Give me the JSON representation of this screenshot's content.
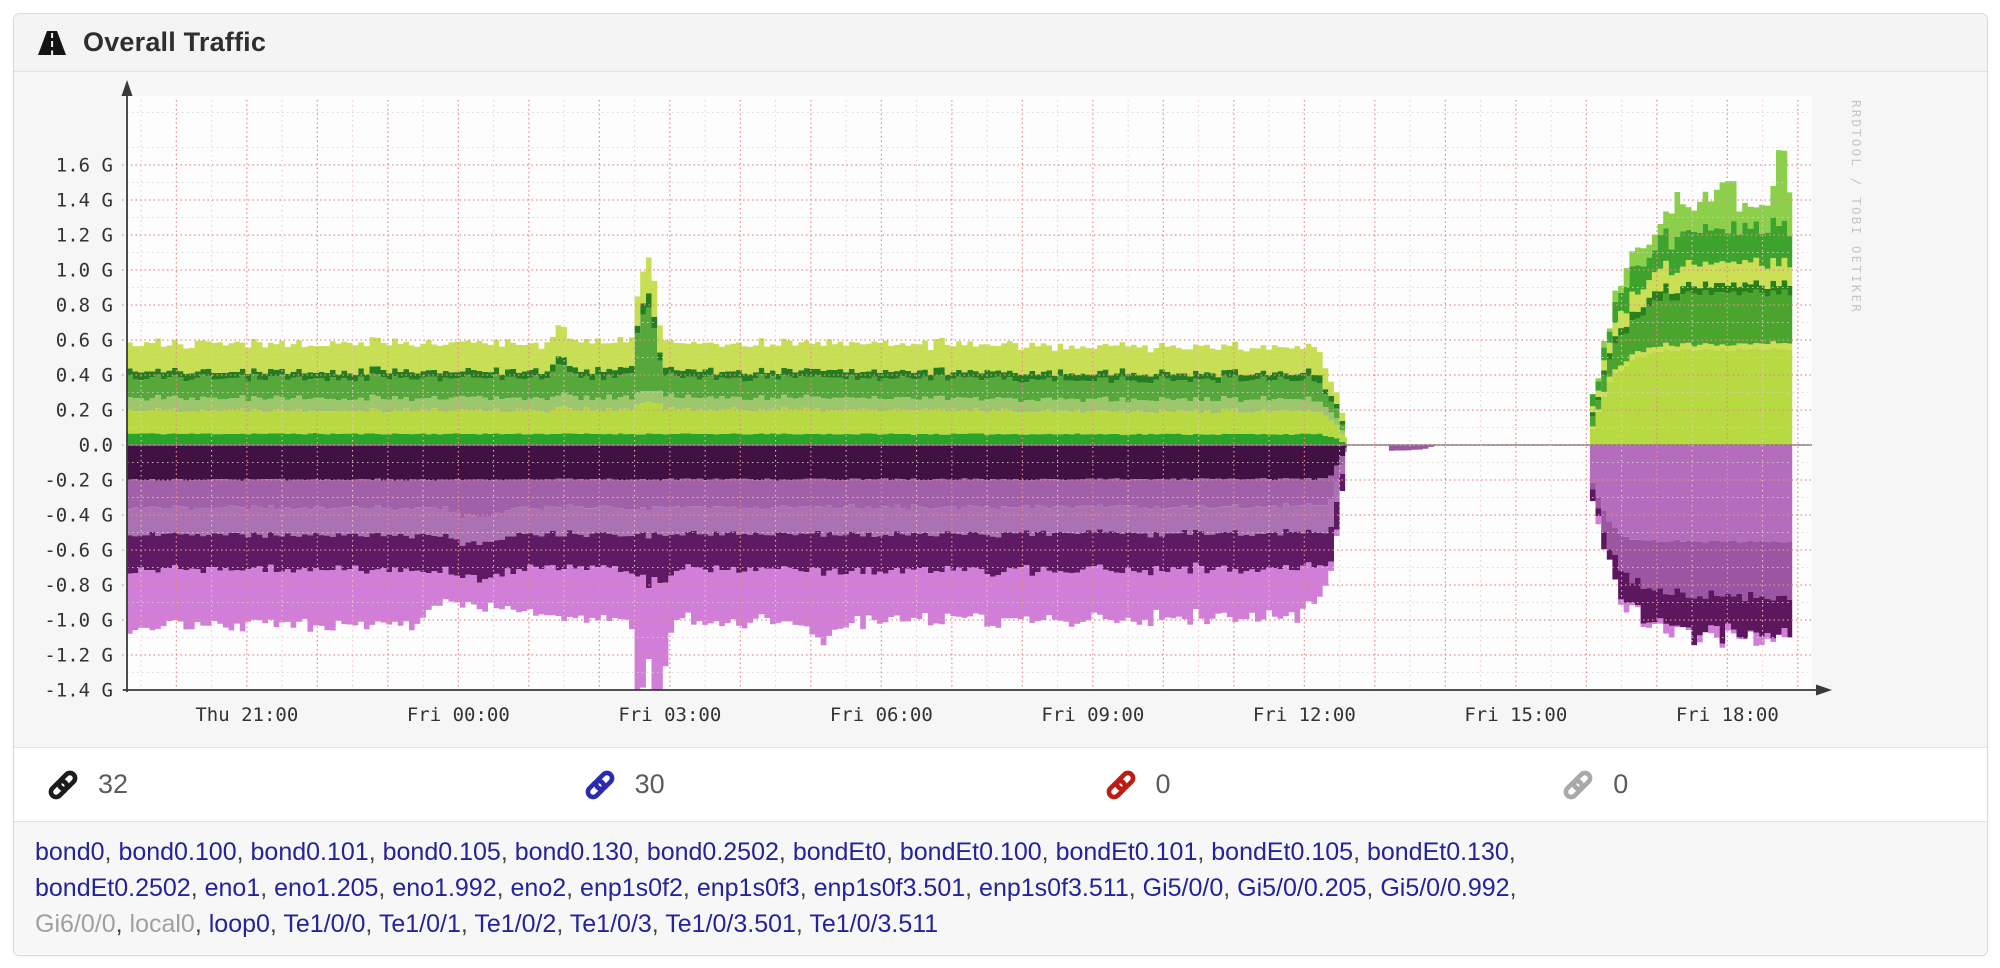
{
  "header": {
    "title": "Overall Traffic",
    "icon": "road-icon"
  },
  "chart_data": {
    "type": "area",
    "variant": "bidirectional-stacked-rrd",
    "title": "Overall Traffic",
    "watermark": "RRDTOOL / TOBI OETIKER",
    "y_unit": "G",
    "grid": true,
    "legend": null,
    "x_axis_note": "t = hours since Thu 19:18; green stack = inbound (above zero), purple stack = outbound (below zero); data gap between t=17.3 and t=20.75 with tiny purple blips",
    "x_ticks": [
      {
        "t": 1.7,
        "label": "Thu 21:00"
      },
      {
        "t": 4.7,
        "label": "Fri 00:00"
      },
      {
        "t": 7.7,
        "label": "Fri 03:00"
      },
      {
        "t": 10.7,
        "label": "Fri 06:00"
      },
      {
        "t": 13.7,
        "label": "Fri 09:00"
      },
      {
        "t": 16.7,
        "label": "Fri 12:00"
      },
      {
        "t": 19.7,
        "label": "Fri 15:00"
      },
      {
        "t": 22.7,
        "label": "Fri 18:00"
      }
    ],
    "y_ticks": [
      {
        "v": 1.6,
        "label": "1.6 G"
      },
      {
        "v": 1.4,
        "label": "1.4 G"
      },
      {
        "v": 1.2,
        "label": "1.2 G"
      },
      {
        "v": 1.0,
        "label": "1.0 G"
      },
      {
        "v": 0.8,
        "label": "0.8 G"
      },
      {
        "v": 0.6,
        "label": "0.6 G"
      },
      {
        "v": 0.4,
        "label": "0.4 G"
      },
      {
        "v": 0.2,
        "label": "0.2 G"
      },
      {
        "v": 0.0,
        "label": "0.0"
      },
      {
        "v": -0.2,
        "label": "-0.2 G"
      },
      {
        "v": -0.4,
        "label": "-0.4 G"
      },
      {
        "v": -0.6,
        "label": "-0.6 G"
      },
      {
        "v": -0.8,
        "label": "-0.8 G"
      },
      {
        "v": -1.0,
        "label": "-1.0 G"
      },
      {
        "v": -1.2,
        "label": "-1.2 G"
      },
      {
        "v": -1.4,
        "label": "-1.4 G"
      }
    ],
    "y_range": [
      -1.45,
      1.95
    ],
    "x_range": [
      0,
      23.85
    ],
    "style": {
      "plot_bg": "#fdfdfd",
      "image_bg": "#f6f6f6",
      "grid_major": "#e98a8a",
      "grid_minor_h": "#d4d4d4",
      "grid_minor_v": "#f2c8c8",
      "axis": "#3a3a3a",
      "zero_line": "#7d7d7d",
      "tick_text": "#333333",
      "watermark_color": "#c6c6c6"
    },
    "segments": [
      {
        "t0": 0,
        "t1": 17.3,
        "step": 0.08,
        "pos": [
          {
            "color": "#2aa32a",
            "noise": 0.004,
            "seed": 11,
            "keys": [
              [
                0,
                0.065
              ],
              [
                16.9,
                0.062
              ],
              [
                17.1,
                0.04
              ],
              [
                17.3,
                0
              ]
            ]
          },
          {
            "color": "#b7d941",
            "noise": 0.012,
            "seed": 22,
            "keys": [
              [
                0,
                0.135
              ],
              [
                6.0,
                0.135
              ],
              [
                6.12,
                0.16
              ],
              [
                6.3,
                0.14
              ],
              [
                7.1,
                0.135
              ],
              [
                7.25,
                0.18
              ],
              [
                7.45,
                0.18
              ],
              [
                7.6,
                0.14
              ],
              [
                16.8,
                0.13
              ],
              [
                17.1,
                0.08
              ],
              [
                17.3,
                0
              ]
            ]
          },
          {
            "color": "#9cc76c",
            "noise": 0.01,
            "seed": 33,
            "keys": [
              [
                0,
                0.07
              ],
              [
                16.8,
                0.068
              ],
              [
                17.1,
                0.04
              ],
              [
                17.3,
                0
              ]
            ]
          },
          {
            "color": "#57a83a",
            "noise": 0.013,
            "seed": 44,
            "keys": [
              [
                0,
                0.115
              ],
              [
                5.95,
                0.115
              ],
              [
                6.1,
                0.19
              ],
              [
                6.28,
                0.125
              ],
              [
                7.1,
                0.115
              ],
              [
                7.24,
                0.42
              ],
              [
                7.38,
                0.5
              ],
              [
                7.52,
                0.16
              ],
              [
                7.65,
                0.115
              ],
              [
                16.8,
                0.11
              ],
              [
                17.1,
                0.06
              ],
              [
                17.3,
                0
              ]
            ]
          },
          {
            "color": "#267d1f",
            "noise": 0.008,
            "seed": 55,
            "keys": [
              [
                0,
                0.04
              ],
              [
                7.15,
                0.04
              ],
              [
                7.35,
                0.08
              ],
              [
                7.55,
                0.04
              ],
              [
                16.9,
                0.04
              ],
              [
                17.15,
                0.02
              ],
              [
                17.3,
                0
              ]
            ]
          },
          {
            "color": "#c8de54",
            "noise": 0.016,
            "seed": 66,
            "keys": [
              [
                0,
                0.16
              ],
              [
                5.95,
                0.16
              ],
              [
                6.1,
                0.19
              ],
              [
                6.3,
                0.16
              ],
              [
                7.15,
                0.16
              ],
              [
                7.35,
                0.22
              ],
              [
                7.55,
                0.16
              ],
              [
                16.8,
                0.15
              ],
              [
                17.1,
                0.08
              ],
              [
                17.3,
                0
              ]
            ]
          }
        ],
        "neg": [
          {
            "color": "#421143",
            "noise": 0.006,
            "seed": 77,
            "keys": [
              [
                0,
                0.2
              ],
              [
                17.0,
                0.195
              ],
              [
                17.3,
                0
              ]
            ]
          },
          {
            "color": "#a061a9",
            "noise": 0.012,
            "seed": 88,
            "keys": [
              [
                0,
                0.16
              ],
              [
                4.5,
                0.16
              ],
              [
                4.7,
                0.21
              ],
              [
                5.25,
                0.2
              ],
              [
                5.5,
                0.16
              ],
              [
                17.0,
                0.155
              ],
              [
                17.3,
                0
              ]
            ]
          },
          {
            "color": "#ab71b3",
            "noise": 0.012,
            "seed": 99,
            "keys": [
              [
                0,
                0.155
              ],
              [
                17.05,
                0.15
              ],
              [
                17.3,
                0
              ]
            ]
          },
          {
            "color": "#5e1b63",
            "noise": 0.02,
            "seed": 111,
            "keys": [
              [
                0,
                0.2
              ],
              [
                7.1,
                0.2
              ],
              [
                7.3,
                0.27
              ],
              [
                7.6,
                0.26
              ],
              [
                7.8,
                0.2
              ],
              [
                13.0,
                0.215
              ],
              [
                17.05,
                0.2
              ],
              [
                17.3,
                0
              ]
            ]
          },
          {
            "color": "#d07ed8",
            "noise": 0.03,
            "seed": 122,
            "keys": [
              [
                0,
                0.33
              ],
              [
                4.0,
                0.31
              ],
              [
                4.5,
                0.15
              ],
              [
                5.3,
                0.17
              ],
              [
                5.7,
                0.27
              ],
              [
                7.0,
                0.29
              ],
              [
                7.15,
                0.3
              ],
              [
                7.22,
                0.85
              ],
              [
                7.35,
                0.4
              ],
              [
                7.5,
                0.9
              ],
              [
                7.65,
                0.3
              ],
              [
                9.5,
                0.29
              ],
              [
                9.8,
                0.4
              ],
              [
                10.15,
                0.29
              ],
              [
                16.6,
                0.27
              ],
              [
                17.0,
                0.1
              ],
              [
                17.15,
                0
              ]
            ]
          }
        ]
      },
      {
        "t0": 17.82,
        "t1": 18.55,
        "step": 0.08,
        "neg": [
          {
            "color": "#9a58a2",
            "noise": 0.004,
            "seed": 133,
            "keys": [
              [
                17.82,
                0
              ],
              [
                17.9,
                0.03
              ],
              [
                18.35,
                0.026
              ],
              [
                18.45,
                0.012
              ],
              [
                18.55,
                0
              ]
            ]
          }
        ]
      },
      {
        "t0": 20.75,
        "t1": 23.62,
        "step": 0.08,
        "pos": [
          {
            "color": "#b7d941",
            "noise": 0.008,
            "seed": 144,
            "keys": [
              [
                20.75,
                0.1
              ],
              [
                21.0,
                0.38
              ],
              [
                21.35,
                0.5
              ],
              [
                21.8,
                0.545
              ],
              [
                23.62,
                0.55
              ]
            ]
          },
          {
            "color": "#cbdf55",
            "noise": 0.007,
            "seed": 155,
            "keys": [
              [
                20.75,
                0.015
              ],
              [
                21.2,
                0.03
              ],
              [
                23.62,
                0.03
              ]
            ]
          },
          {
            "color": "#4aa42e",
            "noise": 0.02,
            "seed": 166,
            "keys": [
              [
                20.75,
                0.05
              ],
              [
                21.2,
                0.17
              ],
              [
                21.7,
                0.26
              ],
              [
                22.3,
                0.29
              ],
              [
                23.62,
                0.29
              ]
            ]
          },
          {
            "color": "#28801a",
            "noise": 0.01,
            "seed": 177,
            "keys": [
              [
                20.75,
                0.02
              ],
              [
                21.3,
                0.05
              ],
              [
                23.62,
                0.05
              ]
            ]
          },
          {
            "color": "#cbdf55",
            "noise": 0.018,
            "seed": 188,
            "keys": [
              [
                20.75,
                0.03
              ],
              [
                21.3,
                0.1
              ],
              [
                22.0,
                0.12
              ],
              [
                23.62,
                0.12
              ]
            ]
          },
          {
            "color": "#3da32c",
            "noise": 0.035,
            "seed": 199,
            "keys": [
              [
                20.75,
                0.04
              ],
              [
                21.3,
                0.13
              ],
              [
                22.0,
                0.19
              ],
              [
                23.3,
                0.21
              ],
              [
                23.62,
                0.21
              ]
            ]
          },
          {
            "color": "#8ccf4b",
            "noise": 0.045,
            "seed": 211,
            "keys": [
              [
                20.75,
                0.02
              ],
              [
                21.2,
                0.07
              ],
              [
                21.75,
                0.1
              ],
              [
                21.95,
                0.22
              ],
              [
                22.1,
                0.12
              ],
              [
                22.65,
                0.27
              ],
              [
                22.85,
                0.13
              ],
              [
                23.3,
                0.12
              ],
              [
                23.42,
                0.5
              ],
              [
                23.52,
                0.34
              ],
              [
                23.62,
                0.12
              ]
            ]
          }
        ],
        "neg": [
          {
            "color": "#b46cbc",
            "noise": 0.008,
            "seed": 222,
            "keys": [
              [
                20.75,
                0.22
              ],
              [
                21.0,
                0.45
              ],
              [
                21.3,
                0.55
              ],
              [
                23.62,
                0.55
              ]
            ]
          },
          {
            "color": "#9a56a3",
            "noise": 0.028,
            "seed": 233,
            "keys": [
              [
                20.75,
                0.05
              ],
              [
                21.2,
                0.22
              ],
              [
                21.8,
                0.3
              ],
              [
                23.62,
                0.32
              ]
            ]
          },
          {
            "color": "#5c175f",
            "noise": 0.055,
            "seed": 244,
            "keys": [
              [
                20.75,
                0.03
              ],
              [
                21.3,
                0.14
              ],
              [
                21.9,
                0.21
              ],
              [
                23.62,
                0.23
              ]
            ]
          },
          {
            "color": "#d07ed8",
            "noise": 0.04,
            "seed": 255,
            "keys": [
              [
                20.75,
                0.01
              ],
              [
                21.5,
                0.03
              ],
              [
                23.62,
                0.04
              ]
            ]
          }
        ]
      }
    ]
  },
  "ports_summary": [
    {
      "count": 32,
      "color": "#1b1b1b"
    },
    {
      "count": 30,
      "color": "#2b2bb0"
    },
    {
      "count": 0,
      "color": "#bb1d15"
    },
    {
      "count": 0,
      "color": "#a9a9a9"
    }
  ],
  "interfaces": {
    "link_color": "#23239b",
    "muted_color": "#a0a0a0",
    "muted": [
      "Gi6/0/0",
      "local0"
    ],
    "lines": [
      [
        "bond0",
        "bond0.100",
        "bond0.101",
        "bond0.105",
        "bond0.130",
        "bond0.2502",
        "bondEt0",
        "bondEt0.100",
        "bondEt0.101",
        "bondEt0.105",
        "bondEt0.130"
      ],
      [
        "bondEt0.2502",
        "eno1",
        "eno1.205",
        "eno1.992",
        "eno2",
        "enp1s0f2",
        "enp1s0f3",
        "enp1s0f3.501",
        "enp1s0f3.511",
        "Gi5/0/0",
        "Gi5/0/0.205",
        "Gi5/0/0.992"
      ],
      [
        "Gi6/0/0",
        "local0",
        "loop0",
        "Te1/0/0",
        "Te1/0/1",
        "Te1/0/2",
        "Te1/0/3",
        "Te1/0/3.501",
        "Te1/0/3.511"
      ]
    ]
  }
}
